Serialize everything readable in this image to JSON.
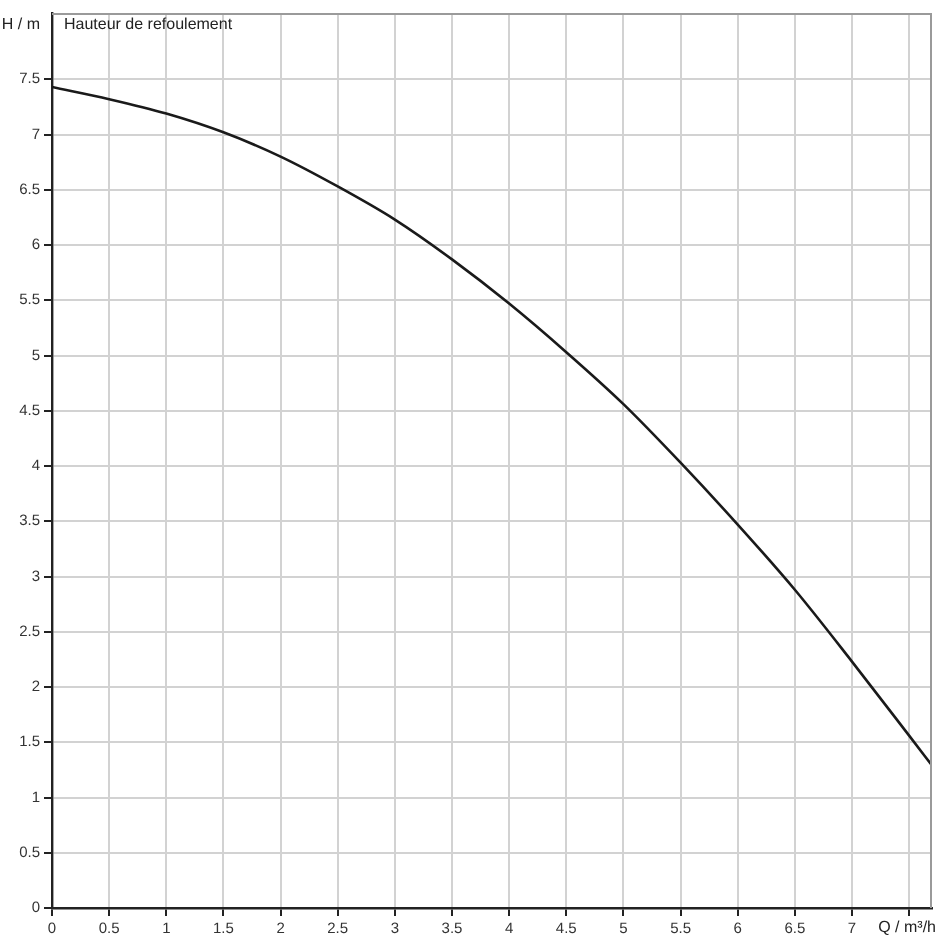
{
  "chart_data": {
    "type": "line",
    "title": "Hauteur de refoulement",
    "xlabel": "Q / m³/h",
    "ylabel": "H / m",
    "x": [
      0,
      0.5,
      1,
      1.5,
      2,
      2.5,
      3,
      3.5,
      4,
      4.5,
      5,
      5.5,
      6,
      6.5,
      7,
      7.5,
      7.7
    ],
    "series": [
      {
        "color": "#1a1a1a",
        "values": [
          7.43,
          7.32,
          7.19,
          7.02,
          6.8,
          6.53,
          6.23,
          5.87,
          5.47,
          5.03,
          4.56,
          4.03,
          3.47,
          2.88,
          2.23,
          1.56,
          1.29
        ]
      }
    ],
    "xlim": [
      0,
      7.7
    ],
    "ylim": [
      0,
      8.1
    ],
    "xticks": [
      0,
      0.5,
      1,
      1.5,
      2,
      2.5,
      3,
      3.5,
      4,
      4.5,
      5,
      5.5,
      6,
      6.5,
      7,
      {
        "value": 7.5,
        "label": null
      }
    ],
    "yticks": [
      0,
      0.5,
      1,
      1.5,
      2,
      2.5,
      3,
      3.5,
      4,
      4.5,
      5,
      5.5,
      6,
      6.5,
      7,
      7.5
    ],
    "grid": true,
    "marker": "none",
    "line_style": "solid"
  }
}
